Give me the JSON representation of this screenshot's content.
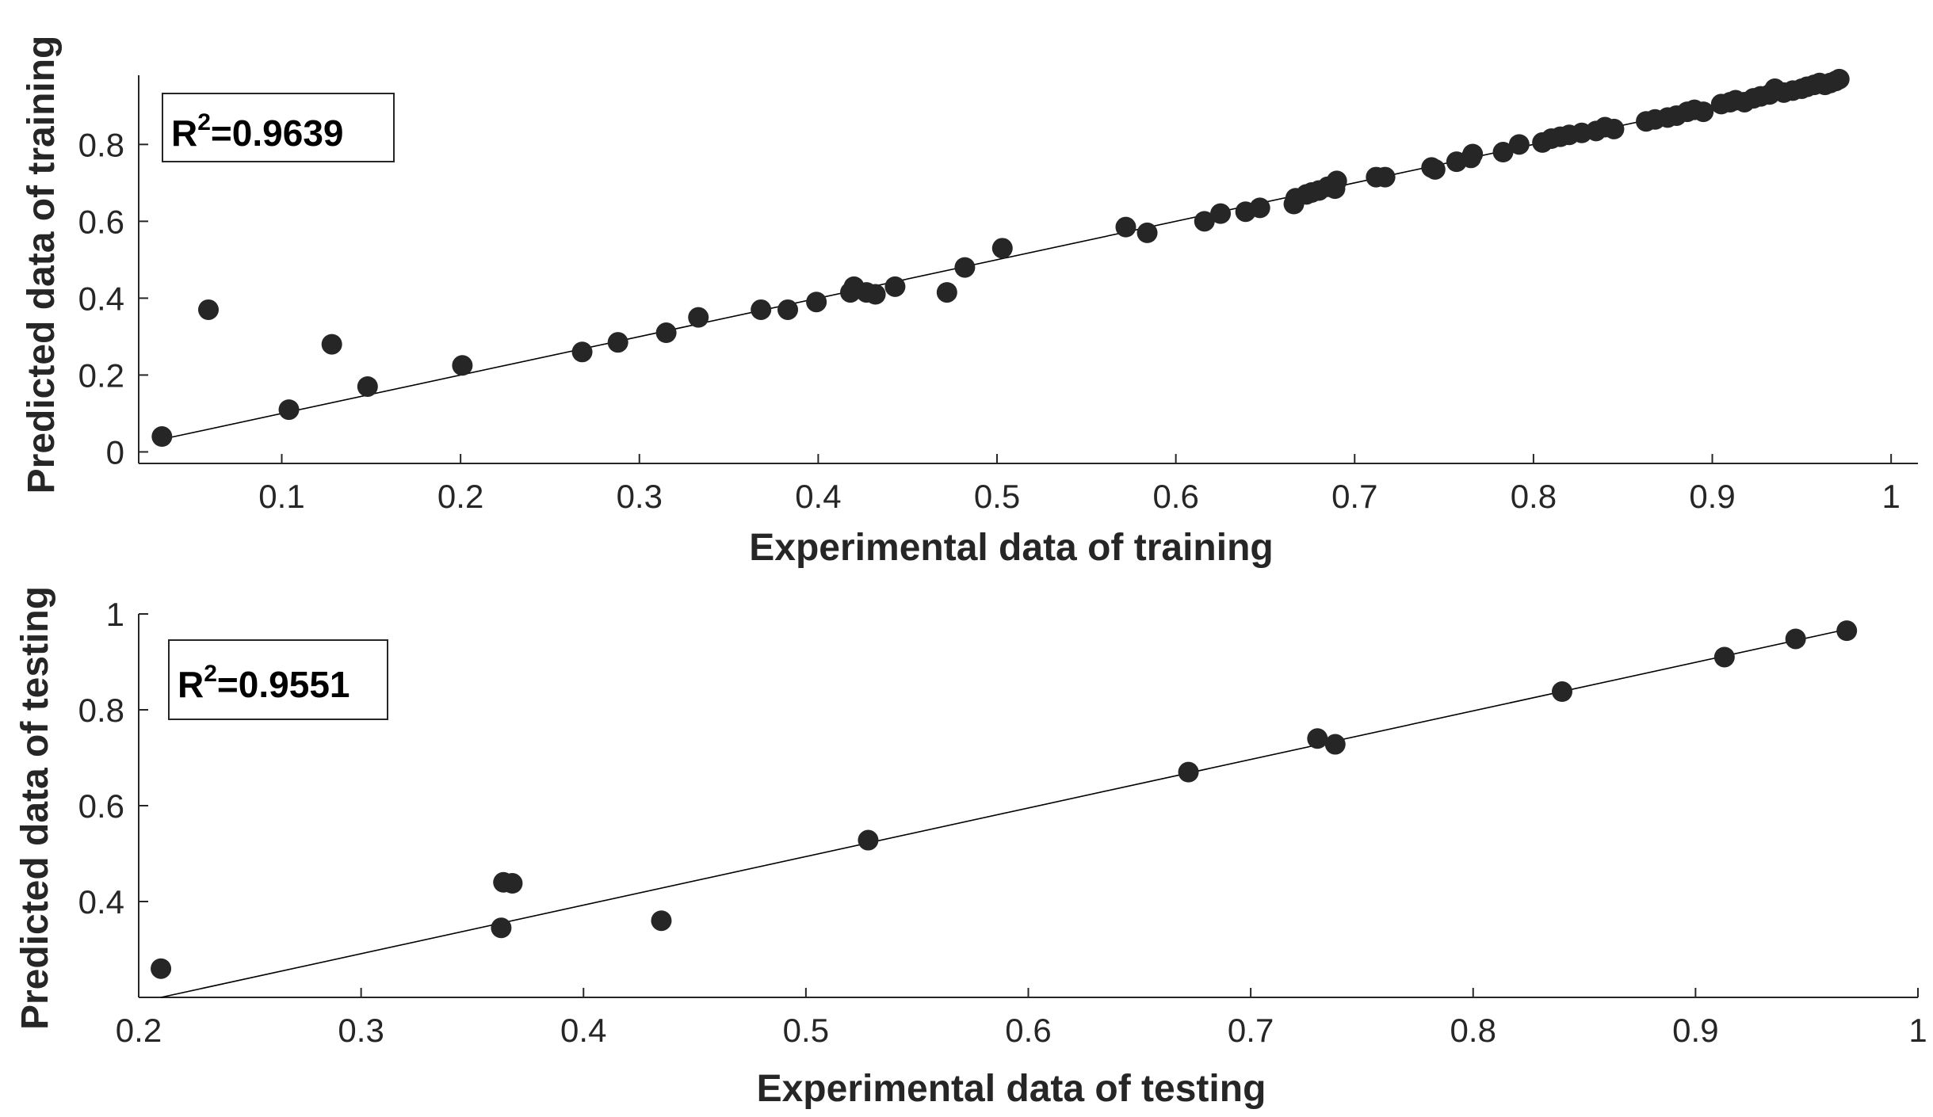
{
  "colors": {
    "marker": "#262626",
    "axis": "#262626",
    "fit_line": "#000000",
    "background": "#ffffff"
  },
  "chart_data": [
    {
      "type": "scatter",
      "name": "training",
      "xlabel": "Experimental data of training",
      "ylabel": "Predicted data of training",
      "annotation": {
        "prefix": "R",
        "superscript": "2",
        "value_text": "=0.9639"
      },
      "xlim": [
        0.02,
        1.015
      ],
      "ylim": [
        -0.03,
        0.98
      ],
      "xticks": [
        0.1,
        0.2,
        0.3,
        0.4,
        0.5,
        0.6,
        0.7,
        0.8,
        0.9,
        1
      ],
      "xtick_labels": [
        "0.1",
        "0.2",
        "0.3",
        "0.4",
        "0.5",
        "0.6",
        "0.7",
        "0.8",
        "0.9",
        "1"
      ],
      "yticks": [
        0,
        0.2,
        0.4,
        0.6,
        0.8
      ],
      "ytick_labels": [
        "0",
        "0.2",
        "0.4",
        "0.6",
        "0.8"
      ],
      "fit_line": {
        "x": [
          0.03,
          0.97
        ],
        "y": [
          0.03,
          0.97
        ]
      },
      "points": [
        [
          0.033,
          0.04
        ],
        [
          0.059,
          0.37
        ],
        [
          0.104,
          0.11
        ],
        [
          0.128,
          0.28
        ],
        [
          0.148,
          0.17
        ],
        [
          0.201,
          0.225
        ],
        [
          0.268,
          0.26
        ],
        [
          0.288,
          0.285
        ],
        [
          0.315,
          0.31
        ],
        [
          0.333,
          0.35
        ],
        [
          0.368,
          0.37
        ],
        [
          0.383,
          0.37
        ],
        [
          0.399,
          0.39
        ],
        [
          0.418,
          0.415
        ],
        [
          0.42,
          0.43
        ],
        [
          0.427,
          0.415
        ],
        [
          0.432,
          0.41
        ],
        [
          0.443,
          0.43
        ],
        [
          0.472,
          0.415
        ],
        [
          0.482,
          0.48
        ],
        [
          0.503,
          0.53
        ],
        [
          0.572,
          0.585
        ],
        [
          0.584,
          0.57
        ],
        [
          0.616,
          0.6
        ],
        [
          0.625,
          0.62
        ],
        [
          0.639,
          0.625
        ],
        [
          0.647,
          0.635
        ],
        [
          0.666,
          0.645
        ],
        [
          0.667,
          0.66
        ],
        [
          0.673,
          0.67
        ],
        [
          0.676,
          0.675
        ],
        [
          0.68,
          0.68
        ],
        [
          0.685,
          0.69
        ],
        [
          0.689,
          0.685
        ],
        [
          0.69,
          0.705
        ],
        [
          0.712,
          0.715
        ],
        [
          0.717,
          0.715
        ],
        [
          0.743,
          0.74
        ],
        [
          0.745,
          0.735
        ],
        [
          0.757,
          0.755
        ],
        [
          0.765,
          0.765
        ],
        [
          0.766,
          0.775
        ],
        [
          0.783,
          0.78
        ],
        [
          0.792,
          0.8
        ],
        [
          0.805,
          0.805
        ],
        [
          0.81,
          0.815
        ],
        [
          0.815,
          0.82
        ],
        [
          0.82,
          0.825
        ],
        [
          0.827,
          0.83
        ],
        [
          0.835,
          0.835
        ],
        [
          0.84,
          0.845
        ],
        [
          0.845,
          0.84
        ],
        [
          0.863,
          0.86
        ],
        [
          0.868,
          0.865
        ],
        [
          0.875,
          0.87
        ],
        [
          0.88,
          0.875
        ],
        [
          0.886,
          0.885
        ],
        [
          0.89,
          0.89
        ],
        [
          0.895,
          0.885
        ],
        [
          0.905,
          0.905
        ],
        [
          0.91,
          0.91
        ],
        [
          0.913,
          0.915
        ],
        [
          0.918,
          0.91
        ],
        [
          0.923,
          0.92
        ],
        [
          0.927,
          0.925
        ],
        [
          0.932,
          0.93
        ],
        [
          0.935,
          0.945
        ],
        [
          0.94,
          0.935
        ],
        [
          0.945,
          0.94
        ],
        [
          0.95,
          0.945
        ],
        [
          0.953,
          0.95
        ],
        [
          0.957,
          0.955
        ],
        [
          0.96,
          0.96
        ],
        [
          0.963,
          0.955
        ],
        [
          0.966,
          0.96
        ],
        [
          0.969,
          0.965
        ],
        [
          0.971,
          0.97
        ]
      ]
    },
    {
      "type": "scatter",
      "name": "testing",
      "xlabel": "Experimental data of testing",
      "ylabel": "Predicted data of testing",
      "annotation": {
        "prefix": "R",
        "superscript": "2",
        "value_text": "=0.9551"
      },
      "xlim": [
        0.2,
        1.0
      ],
      "ylim": [
        0.2,
        1.0
      ],
      "xticks": [
        0.2,
        0.3,
        0.4,
        0.5,
        0.6,
        0.7,
        0.8,
        0.9,
        1
      ],
      "xtick_labels": [
        "0.2",
        "0.3",
        "0.4",
        "0.5",
        "0.6",
        "0.7",
        "0.8",
        "0.9",
        "1"
      ],
      "yticks": [
        0.4,
        0.6,
        0.8,
        1
      ],
      "ytick_labels": [
        "0.4",
        "0.6",
        "0.8",
        "1"
      ],
      "fit_line": {
        "x": [
          0.21,
          0.97
        ],
        "y": [
          0.2,
          0.97
        ]
      },
      "points": [
        [
          0.21,
          0.26
        ],
        [
          0.363,
          0.345
        ],
        [
          0.364,
          0.44
        ],
        [
          0.368,
          0.438
        ],
        [
          0.435,
          0.36
        ],
        [
          0.528,
          0.528
        ],
        [
          0.672,
          0.67
        ],
        [
          0.73,
          0.74
        ],
        [
          0.738,
          0.728
        ],
        [
          0.84,
          0.838
        ],
        [
          0.913,
          0.91
        ],
        [
          0.945,
          0.948
        ],
        [
          0.968,
          0.965
        ]
      ]
    }
  ]
}
